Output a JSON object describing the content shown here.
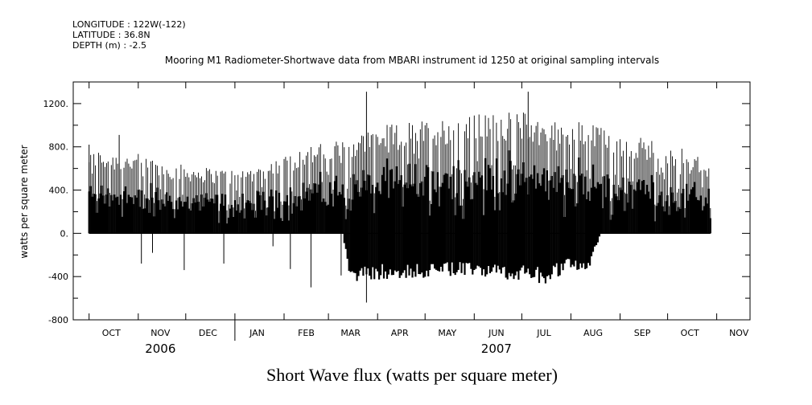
{
  "header": {
    "longitude": "LONGITUDE : 122W(-122)",
    "latitude": "LATITUDE : 36.8N",
    "depth": "DEPTH (m) : -2.5"
  },
  "chart_data": {
    "type": "line",
    "title": "Mooring M1 Radiometer-Shortwave data from MBARI instrument id 1250 at original sampling intervals",
    "ylabel": "watts per square meter",
    "xlabel": "Short Wave flux (watts per square meter)",
    "ylim": [
      -800,
      1400
    ],
    "xlim": [
      "2006-09-21",
      "2007-11-22"
    ],
    "y_ticks": [
      "1200.",
      "800.",
      "400.",
      "0.",
      "-400",
      "-800"
    ],
    "y_tick_values": [
      1200,
      800,
      400,
      0,
      -400,
      -800
    ],
    "x_month_labels": [
      "OCT",
      "NOV",
      "DEC",
      "JAN",
      "FEB",
      "MAR",
      "APR",
      "MAY",
      "JUN",
      "JUL",
      "AUG",
      "SEP",
      "OCT",
      "NOV"
    ],
    "x_month_label_dates": [
      "2006-10-01",
      "2006-11-01",
      "2006-12-01",
      "2007-01-01",
      "2007-02-01",
      "2007-03-01",
      "2007-04-01",
      "2007-05-01",
      "2007-06-01",
      "2007-07-01",
      "2007-08-01",
      "2007-09-01",
      "2007-10-01",
      "2007-11-01"
    ],
    "x_year_labels": [
      "2006",
      "2007"
    ],
    "x_year_label_dates": [
      "2006-11-15",
      "2007-06-15"
    ],
    "series": [
      {
        "color": "#000000",
        "daily_max_envelope": {
          "dates": [
            "2006-10-01",
            "2006-10-15",
            "2006-11-01",
            "2006-11-15",
            "2006-12-01",
            "2006-12-15",
            "2007-01-01",
            "2007-01-15",
            "2007-02-01",
            "2007-02-15",
            "2007-03-01",
            "2007-03-15",
            "2007-04-01",
            "2007-04-15",
            "2007-05-01",
            "2007-05-15",
            "2007-06-01",
            "2007-06-15",
            "2007-07-01",
            "2007-07-15",
            "2007-08-01",
            "2007-08-15",
            "2007-09-01",
            "2007-09-15",
            "2007-10-01",
            "2007-10-15",
            "2007-10-28"
          ],
          "values": [
            750,
            720,
            700,
            640,
            600,
            580,
            560,
            600,
            680,
            780,
            800,
            860,
            940,
            980,
            1000,
            1020,
            1050,
            1060,
            1080,
            1000,
            1000,
            960,
            880,
            850,
            800,
            720,
            620
          ]
        },
        "daily_min_envelope": {
          "dates": [
            "2006-10-01",
            "2007-03-10",
            "2007-03-15",
            "2007-04-01",
            "2007-05-01",
            "2007-06-01",
            "2007-07-01",
            "2007-07-15",
            "2007-08-01",
            "2007-08-12",
            "2007-08-20",
            "2007-10-28"
          ],
          "values": [
            0,
            0,
            -400,
            -380,
            -360,
            -350,
            -380,
            -420,
            -300,
            -300,
            0,
            0
          ]
        },
        "spikes": [
          {
            "date": "2006-11-03",
            "value": -280
          },
          {
            "date": "2006-11-10",
            "value": -180
          },
          {
            "date": "2006-11-30",
            "value": -340
          },
          {
            "date": "2006-12-25",
            "value": -280
          },
          {
            "date": "2007-01-25",
            "value": -120
          },
          {
            "date": "2007-02-05",
            "value": -330
          },
          {
            "date": "2007-02-18",
            "value": -500
          },
          {
            "date": "2007-03-09",
            "value": -390
          },
          {
            "date": "2007-03-25",
            "value": 1310
          },
          {
            "date": "2007-03-25",
            "value": -640
          },
          {
            "date": "2007-07-05",
            "value": 1310
          },
          {
            "date": "2006-10-01",
            "value": 820
          },
          {
            "date": "2006-10-20",
            "value": 910
          }
        ]
      }
    ],
    "grid": false,
    "legend": "none"
  }
}
